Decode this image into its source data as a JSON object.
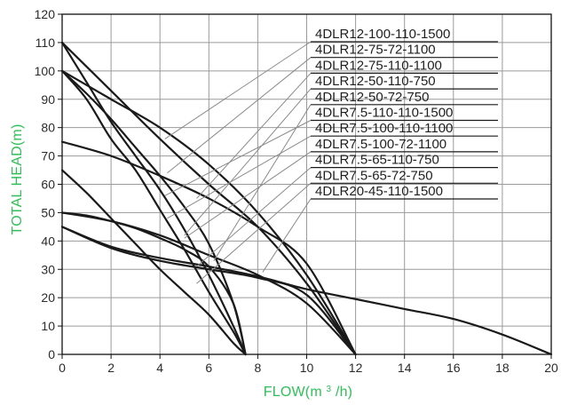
{
  "chart_data": {
    "type": "line",
    "title": "",
    "xlabel_prefix": "FLOW(m",
    "xlabel_sup": "3",
    "xlabel_suffix": "/h)",
    "ylabel": "TOTAL HEAD(m)",
    "xlim": [
      0,
      20
    ],
    "ylim": [
      0,
      120
    ],
    "xticks": [
      0,
      2,
      4,
      6,
      8,
      10,
      12,
      14,
      16,
      18,
      20
    ],
    "yticks": [
      0,
      10,
      20,
      30,
      40,
      50,
      60,
      70,
      80,
      90,
      100,
      110,
      120
    ],
    "grid": true,
    "legend_position": "upper-right",
    "colors": {
      "grid": "#9a9a9a",
      "axis": "#111111",
      "curve": "#1a1a1a",
      "label_text": "#2fbf57",
      "leader": "#8a8a8a"
    },
    "series": [
      {
        "name": "4DLR12-100-110-1500",
        "x": [
          0,
          2,
          4,
          6,
          8,
          10,
          12
        ],
        "y": [
          110,
          93,
          76,
          60,
          45,
          25,
          0
        ],
        "pointer": [
          4.2,
          76
        ]
      },
      {
        "name": "4DLR12-75-72-1100",
        "x": [
          0,
          2,
          4,
          6,
          8,
          10,
          12
        ],
        "y": [
          100,
          90,
          80,
          67,
          50,
          28,
          0
        ],
        "pointer": [
          4.3,
          64
        ]
      },
      {
        "name": "4DLR12-75-110-1100",
        "x": [
          0,
          2,
          4,
          6,
          8,
          10,
          12
        ],
        "y": [
          75,
          70,
          63,
          55,
          45,
          32,
          0
        ],
        "pointer": [
          5.5,
          55
        ]
      },
      {
        "name": "4DLR12-50-110-750",
        "x": [
          0,
          2,
          4,
          6,
          8,
          10,
          12
        ],
        "y": [
          50,
          47,
          42,
          35,
          28,
          18,
          0
        ],
        "pointer": [
          5,
          42
        ]
      },
      {
        "name": "4DLR12-50-72-750",
        "x": [
          0,
          2,
          4,
          6,
          8,
          10,
          12
        ],
        "y": [
          45,
          37.5,
          33,
          30,
          27,
          21,
          0
        ],
        "pointer": [
          6.2,
          33
        ]
      },
      {
        "name": "4DLR7.5-110-110-1500",
        "x": [
          0,
          1,
          2,
          3,
          4,
          5,
          6,
          7,
          7.5
        ],
        "y": [
          110,
          96,
          82,
          70,
          58,
          44,
          28,
          10,
          0
        ],
        "pointer": [
          4.2,
          56
        ]
      },
      {
        "name": "4DLR7.5-100-110-1100",
        "x": [
          0,
          1,
          2,
          3,
          4,
          5,
          6,
          7,
          7.5
        ],
        "y": [
          100,
          90,
          76,
          65,
          51,
          37,
          22,
          8,
          0
        ],
        "pointer": [
          4.3,
          48
        ]
      },
      {
        "name": "4DLR7.5-100-72-1100",
        "x": [
          0,
          1,
          2,
          3,
          4,
          5,
          6,
          7,
          7.5
        ],
        "y": [
          100,
          92,
          83,
          73,
          63,
          52,
          39,
          18,
          0
        ],
        "pointer": [
          5,
          41
        ]
      },
      {
        "name": "4DLR7.5-65-110-750",
        "x": [
          0,
          1,
          2,
          3,
          4,
          5,
          6,
          7,
          7.5
        ],
        "y": [
          65,
          57,
          48,
          39,
          30,
          22,
          14,
          4,
          0
        ],
        "pointer": [
          5.5,
          31
        ]
      },
      {
        "name": "4DLR7.5-65-72-750",
        "x": [
          0,
          1,
          2,
          3,
          4,
          5,
          6,
          7,
          7.5
        ],
        "y": [
          50,
          49,
          47,
          44.5,
          41,
          37,
          31,
          18,
          0
        ],
        "pointer": [
          5.5,
          25
        ]
      },
      {
        "name": "4DLR20-45-110-1500",
        "x": [
          0,
          2,
          4,
          6,
          8,
          10,
          12,
          14,
          16,
          18,
          20
        ],
        "y": [
          45,
          38,
          34,
          31,
          27.5,
          23,
          19.5,
          16,
          12.5,
          7,
          0
        ],
        "pointer": [
          8.2,
          29
        ]
      }
    ]
  }
}
